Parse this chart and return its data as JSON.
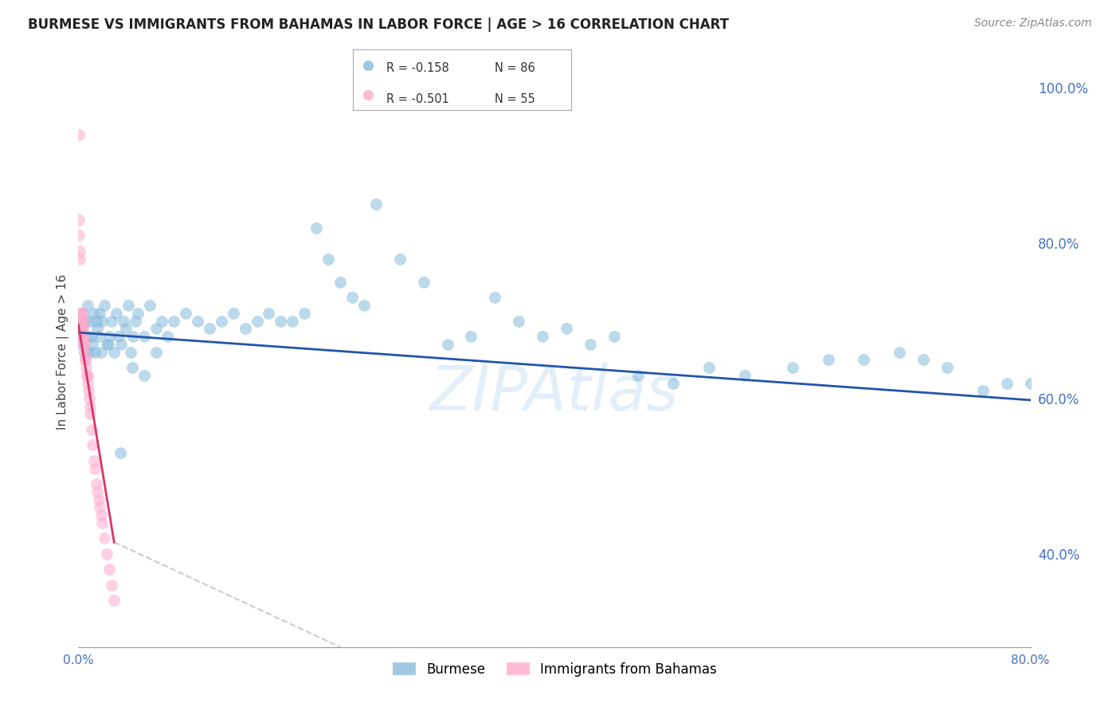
{
  "title": "BURMESE VS IMMIGRANTS FROM BAHAMAS IN LABOR FORCE | AGE > 16 CORRELATION CHART",
  "source": "Source: ZipAtlas.com",
  "ylabel": "In Labor Force | Age > 16",
  "x_min": 0.0,
  "x_max": 0.8,
  "y_min": 0.28,
  "y_max": 1.04,
  "right_yticks": [
    0.4,
    0.6,
    0.8,
    1.0
  ],
  "right_yticklabels": [
    "40.0%",
    "60.0%",
    "80.0%",
    "100.0%"
  ],
  "bottom_xticks": [
    0.0,
    0.1,
    0.2,
    0.3,
    0.4,
    0.5,
    0.6,
    0.7,
    0.8
  ],
  "bottom_xticklabels": [
    "0.0%",
    "",
    "",
    "",
    "",
    "",
    "",
    "",
    "80.0%"
  ],
  "legend_blue_label": "Burmese",
  "legend_pink_label": "Immigrants from Bahamas",
  "R_blue": -0.158,
  "N_blue": 86,
  "R_pink": -0.501,
  "N_pink": 55,
  "blue_color": "#88bbdd",
  "pink_color": "#ffaacc",
  "blue_line_color": "#2255aa",
  "pink_line_color": "#dd3366",
  "watermark": "ZIPAtlas",
  "blue_line_x0": 0.0,
  "blue_line_y0": 0.685,
  "blue_line_x1": 0.8,
  "blue_line_y1": 0.598,
  "pink_line_x0": 0.0,
  "pink_line_y0": 0.695,
  "pink_line_solid_x1": 0.03,
  "pink_line_solid_y1": 0.415,
  "pink_line_dash_x1": 0.22,
  "pink_line_dash_y1": 0.28,
  "blue_scatter_x": [
    0.001,
    0.002,
    0.003,
    0.004,
    0.005,
    0.006,
    0.007,
    0.008,
    0.009,
    0.01,
    0.011,
    0.012,
    0.013,
    0.014,
    0.015,
    0.016,
    0.017,
    0.018,
    0.019,
    0.02,
    0.022,
    0.024,
    0.026,
    0.028,
    0.03,
    0.032,
    0.034,
    0.036,
    0.038,
    0.04,
    0.042,
    0.044,
    0.046,
    0.048,
    0.05,
    0.055,
    0.06,
    0.065,
    0.07,
    0.075,
    0.08,
    0.09,
    0.1,
    0.11,
    0.12,
    0.13,
    0.14,
    0.15,
    0.16,
    0.17,
    0.18,
    0.19,
    0.2,
    0.21,
    0.22,
    0.23,
    0.24,
    0.25,
    0.27,
    0.29,
    0.31,
    0.33,
    0.35,
    0.37,
    0.39,
    0.41,
    0.43,
    0.45,
    0.47,
    0.5,
    0.53,
    0.56,
    0.6,
    0.63,
    0.66,
    0.69,
    0.71,
    0.73,
    0.76,
    0.78,
    0.8,
    0.025,
    0.035,
    0.045,
    0.055,
    0.065
  ],
  "blue_scatter_y": [
    0.68,
    0.69,
    0.67,
    0.71,
    0.66,
    0.7,
    0.68,
    0.72,
    0.66,
    0.7,
    0.68,
    0.67,
    0.71,
    0.66,
    0.7,
    0.69,
    0.68,
    0.71,
    0.66,
    0.7,
    0.72,
    0.67,
    0.68,
    0.7,
    0.66,
    0.71,
    0.68,
    0.67,
    0.7,
    0.69,
    0.72,
    0.66,
    0.68,
    0.7,
    0.71,
    0.68,
    0.72,
    0.69,
    0.7,
    0.68,
    0.7,
    0.71,
    0.7,
    0.69,
    0.7,
    0.71,
    0.69,
    0.7,
    0.71,
    0.7,
    0.7,
    0.71,
    0.82,
    0.78,
    0.75,
    0.73,
    0.72,
    0.85,
    0.78,
    0.75,
    0.67,
    0.68,
    0.73,
    0.7,
    0.68,
    0.69,
    0.67,
    0.68,
    0.63,
    0.62,
    0.64,
    0.63,
    0.64,
    0.65,
    0.65,
    0.66,
    0.65,
    0.64,
    0.61,
    0.62,
    0.62,
    0.67,
    0.53,
    0.64,
    0.63,
    0.66
  ],
  "pink_scatter_x": [
    0.0002,
    0.0004,
    0.0006,
    0.0008,
    0.001,
    0.0012,
    0.0014,
    0.0016,
    0.0018,
    0.002,
    0.0022,
    0.0024,
    0.0026,
    0.0028,
    0.003,
    0.0032,
    0.0034,
    0.0036,
    0.0038,
    0.004,
    0.0042,
    0.0044,
    0.0046,
    0.0048,
    0.005,
    0.0055,
    0.006,
    0.0065,
    0.007,
    0.0075,
    0.008,
    0.0085,
    0.009,
    0.0095,
    0.01,
    0.011,
    0.012,
    0.013,
    0.014,
    0.015,
    0.016,
    0.017,
    0.018,
    0.019,
    0.02,
    0.022,
    0.024,
    0.026,
    0.028,
    0.03,
    0.0003,
    0.0005,
    0.0007,
    0.0009,
    0.0011
  ],
  "pink_scatter_y": [
    0.68,
    0.69,
    0.68,
    0.7,
    0.71,
    0.69,
    0.7,
    0.68,
    0.71,
    0.7,
    0.69,
    0.68,
    0.7,
    0.71,
    0.69,
    0.68,
    0.7,
    0.69,
    0.7,
    0.68,
    0.68,
    0.67,
    0.68,
    0.67,
    0.66,
    0.65,
    0.65,
    0.64,
    0.63,
    0.63,
    0.62,
    0.61,
    0.6,
    0.59,
    0.58,
    0.56,
    0.54,
    0.52,
    0.51,
    0.49,
    0.48,
    0.47,
    0.46,
    0.45,
    0.44,
    0.42,
    0.4,
    0.38,
    0.36,
    0.34,
    0.94,
    0.83,
    0.81,
    0.79,
    0.78
  ]
}
